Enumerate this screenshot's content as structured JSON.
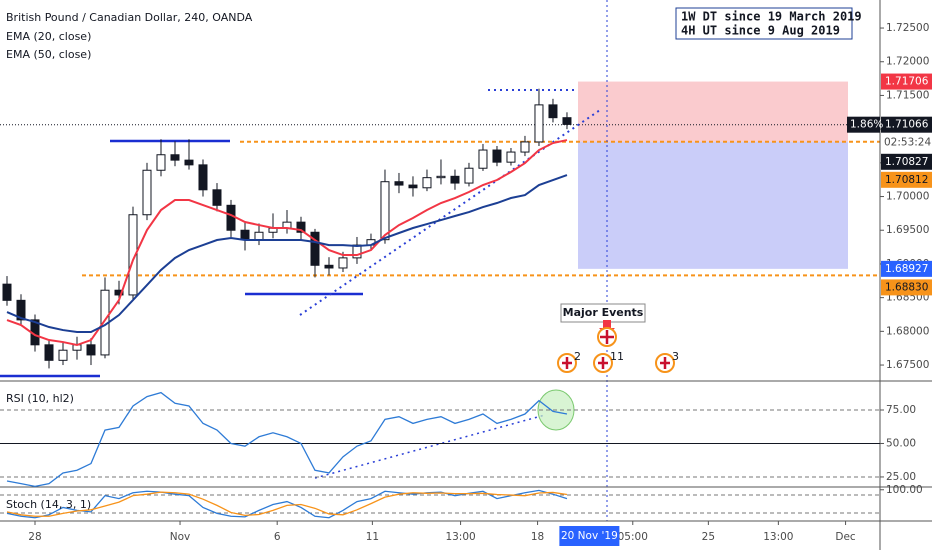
{
  "chart_data": [
    {
      "type": "candlestick",
      "title": "British Pound / Canadian Dollar, 240, OANDA",
      "xlim": [
        0,
        62.86
      ],
      "xticks": [
        {
          "value": 2.5,
          "label": "28"
        },
        {
          "value": 12.86,
          "label": "Nov"
        },
        {
          "value": 19.8,
          "label": "6"
        },
        {
          "value": 26.6,
          "label": "11"
        },
        {
          "value": 32.9,
          "label": "13:00"
        },
        {
          "value": 38.4,
          "label": "18"
        },
        {
          "value": 45.2,
          "label": "05:00"
        },
        {
          "value": 50.6,
          "label": "25"
        },
        {
          "value": 55.6,
          "label": "13:00"
        },
        {
          "value": 60.4,
          "label": "Dec"
        }
      ],
      "crosshair_label": {
        "value": 42.1,
        "label": "20 Nov '19"
      },
      "ylim": [
        1.67278,
        1.72916
      ],
      "yticks": [
        {
          "value": 1.675,
          "label": "1.67500"
        },
        {
          "value": 1.68,
          "label": "1.68000"
        },
        {
          "value": 1.685,
          "label": "1.68500"
        },
        {
          "value": 1.69,
          "label": "1.69000"
        },
        {
          "value": 1.695,
          "label": "1.69500"
        },
        {
          "value": 1.7,
          "label": "1.70000"
        },
        {
          "value": 1.705,
          "label": "1.70500"
        },
        {
          "value": 1.71,
          "label": "1.71000"
        },
        {
          "value": 1.715,
          "label": "1.71500"
        },
        {
          "value": 1.72,
          "label": "1.72000"
        },
        {
          "value": 1.725,
          "label": "1.72500"
        }
      ],
      "x": [
        0.5,
        1.5,
        2.5,
        3.5,
        4.5,
        5.5,
        6.5,
        7.5,
        8.5,
        9.5,
        10.5,
        11.5,
        12.5,
        13.5,
        14.5,
        15.5,
        16.5,
        17.5,
        18.5,
        19.5,
        20.5,
        21.5,
        22.5,
        23.5,
        24.5,
        25.5,
        26.5,
        27.5,
        28.5,
        29.5,
        30.5,
        31.5,
        32.5,
        33.5,
        34.5,
        35.5,
        36.5,
        37.5,
        38.5,
        39.5,
        40.5
      ],
      "ohlc": [
        [
          1.687,
          1.6882,
          1.6838,
          1.6846
        ],
        [
          1.6846,
          1.6855,
          1.681,
          1.6817
        ],
        [
          1.6817,
          1.6825,
          1.677,
          1.678
        ],
        [
          1.678,
          1.6788,
          1.6745,
          1.6757
        ],
        [
          1.6757,
          1.6785,
          1.675,
          1.6772
        ],
        [
          1.6772,
          1.6792,
          1.6758,
          1.678
        ],
        [
          1.678,
          1.679,
          1.675,
          1.6765
        ],
        [
          1.6765,
          1.688,
          1.676,
          1.6861
        ],
        [
          1.6861,
          1.6875,
          1.684,
          1.6854
        ],
        [
          1.6854,
          1.6985,
          1.6848,
          1.6973
        ],
        [
          1.6973,
          1.705,
          1.6965,
          1.7039
        ],
        [
          1.7039,
          1.7085,
          1.703,
          1.7062
        ],
        [
          1.7062,
          1.7082,
          1.7045,
          1.7054
        ],
        [
          1.7054,
          1.7085,
          1.704,
          1.7047
        ],
        [
          1.7047,
          1.7055,
          1.7,
          1.701
        ],
        [
          1.701,
          1.702,
          1.6978,
          1.6987
        ],
        [
          1.6987,
          1.6995,
          1.694,
          1.695
        ],
        [
          1.695,
          1.6962,
          1.692,
          1.6936
        ],
        [
          1.6936,
          1.696,
          1.6928,
          1.6947
        ],
        [
          1.6947,
          1.6975,
          1.6938,
          1.6953
        ],
        [
          1.6953,
          1.698,
          1.6945,
          1.6962
        ],
        [
          1.6962,
          1.697,
          1.6935,
          1.6947
        ],
        [
          1.6947,
          1.6952,
          1.688,
          1.6898
        ],
        [
          1.6898,
          1.691,
          1.6883,
          1.6894
        ],
        [
          1.6894,
          1.6918,
          1.6888,
          1.6909
        ],
        [
          1.6909,
          1.694,
          1.69,
          1.6928
        ],
        [
          1.6928,
          1.6945,
          1.692,
          1.6936
        ],
        [
          1.6936,
          1.704,
          1.693,
          1.7022
        ],
        [
          1.7022,
          1.7035,
          1.7005,
          1.7017
        ],
        [
          1.7017,
          1.703,
          1.7,
          1.7013
        ],
        [
          1.7013,
          1.704,
          1.7008,
          1.7028
        ],
        [
          1.7028,
          1.7055,
          1.7018,
          1.703
        ],
        [
          1.703,
          1.704,
          1.701,
          1.702
        ],
        [
          1.702,
          1.705,
          1.7015,
          1.7042
        ],
        [
          1.7042,
          1.7078,
          1.7038,
          1.7069
        ],
        [
          1.7069,
          1.7075,
          1.7045,
          1.7051
        ],
        [
          1.7051,
          1.7072,
          1.7046,
          1.7066
        ],
        [
          1.7066,
          1.709,
          1.706,
          1.7081
        ],
        [
          1.7081,
          1.716,
          1.7075,
          1.7136
        ],
        [
          1.7136,
          1.7145,
          1.711,
          1.7117
        ],
        [
          1.7117,
          1.7125,
          1.71,
          1.7107
        ]
      ],
      "series": [
        {
          "name": "EMA (20, close)",
          "color": "#f23645",
          "values": [
            1.68168,
            1.68094,
            1.67945,
            1.67871,
            1.67841,
            1.67797,
            1.67871,
            1.68168,
            1.68464,
            1.69058,
            1.69503,
            1.698,
            1.69948,
            1.69948,
            1.69874,
            1.698,
            1.69726,
            1.69622,
            1.69577,
            1.69533,
            1.69533,
            1.69503,
            1.69355,
            1.69206,
            1.69132,
            1.69132,
            1.69206,
            1.69429,
            1.69577,
            1.69681,
            1.698,
            1.69904,
            1.69978,
            1.70067,
            1.70171,
            1.70245,
            1.70364,
            1.70497,
            1.7069,
            1.70794,
            1.70838
          ]
        },
        {
          "name": "EMA (50, close)",
          "color": "#1c3f94",
          "values": [
            1.68286,
            1.68197,
            1.68138,
            1.68064,
            1.68019,
            1.6799,
            1.6799,
            1.68094,
            1.68242,
            1.68464,
            1.68687,
            1.6891,
            1.69088,
            1.69206,
            1.6928,
            1.69355,
            1.69384,
            1.69355,
            1.69355,
            1.69355,
            1.69355,
            1.69355,
            1.69325,
            1.6928,
            1.6928,
            1.69266,
            1.6928,
            1.69384,
            1.69459,
            1.69533,
            1.69592,
            1.69651,
            1.69711,
            1.6977,
            1.69844,
            1.69904,
            1.69978,
            1.70022,
            1.70171,
            1.70245,
            1.70319
          ]
        }
      ],
      "price_labels": [
        {
          "value": 1.71706,
          "label": "1.71706",
          "color": "#f23645"
        },
        {
          "value": 1.71066,
          "label": "1.71066",
          "color": "#131722"
        },
        {
          "value": 1.70827,
          "label": "1.70827",
          "color": "#131722"
        },
        {
          "value": 1.70812,
          "label": "1.70812",
          "color": "#f7931a"
        },
        {
          "value": 1.68927,
          "label": "1.68927",
          "color": "#2962ff"
        },
        {
          "value": 1.6883,
          "label": "1.68830",
          "color": "#f7931a"
        }
      ],
      "change": "1.86%",
      "countdown": "02:53:24",
      "note": [
        "1W DT since 19 March 2019",
        "4H UT since 9 Aug 2019"
      ],
      "events_label": "Major Events",
      "event_counts": [
        "2",
        "11",
        "3"
      ]
    },
    {
      "type": "line",
      "title": "RSI (10, hl2)",
      "ylim": [
        17.5,
        95.9
      ],
      "yticks": [
        {
          "value": 25,
          "label": "25.00"
        },
        {
          "value": 50,
          "label": "50.00"
        },
        {
          "value": 75,
          "label": "75.00"
        }
      ],
      "series": [
        {
          "color": "#2e7bd6",
          "values": [
            22,
            20,
            18,
            20,
            28,
            30,
            35,
            60,
            62,
            78,
            85,
            88,
            80,
            78,
            65,
            60,
            50,
            48,
            55,
            58,
            55,
            50,
            30,
            28,
            40,
            48,
            52,
            68,
            70,
            65,
            68,
            70,
            65,
            68,
            72,
            65,
            68,
            72,
            82,
            74,
            72
          ]
        }
      ]
    },
    {
      "type": "line",
      "title": "Stoch (14, 3, 1)",
      "ylim": [
        -6,
        106
      ],
      "yticks": [
        {
          "value": 100,
          "label": "100.00"
        }
      ],
      "series": [
        {
          "color": "#2e7bd6",
          "values": [
            20,
            10,
            5,
            15,
            40,
            30,
            25,
            80,
            70,
            90,
            95,
            92,
            85,
            80,
            40,
            20,
            10,
            8,
            30,
            50,
            60,
            40,
            10,
            5,
            30,
            60,
            70,
            95,
            90,
            85,
            90,
            92,
            80,
            88,
            95,
            70,
            80,
            90,
            98,
            85,
            70
          ]
        },
        {
          "color": "#f7931a",
          "values": [
            25,
            15,
            10,
            10,
            20,
            28,
            32,
            45,
            58,
            80,
            85,
            92,
            90,
            85,
            68,
            47,
            23,
            13,
            16,
            30,
            47,
            50,
            37,
            18,
            15,
            32,
            53,
            75,
            85,
            90,
            88,
            89,
            87,
            87,
            88,
            84,
            82,
            80,
            89,
            91,
            84
          ]
        }
      ]
    }
  ]
}
